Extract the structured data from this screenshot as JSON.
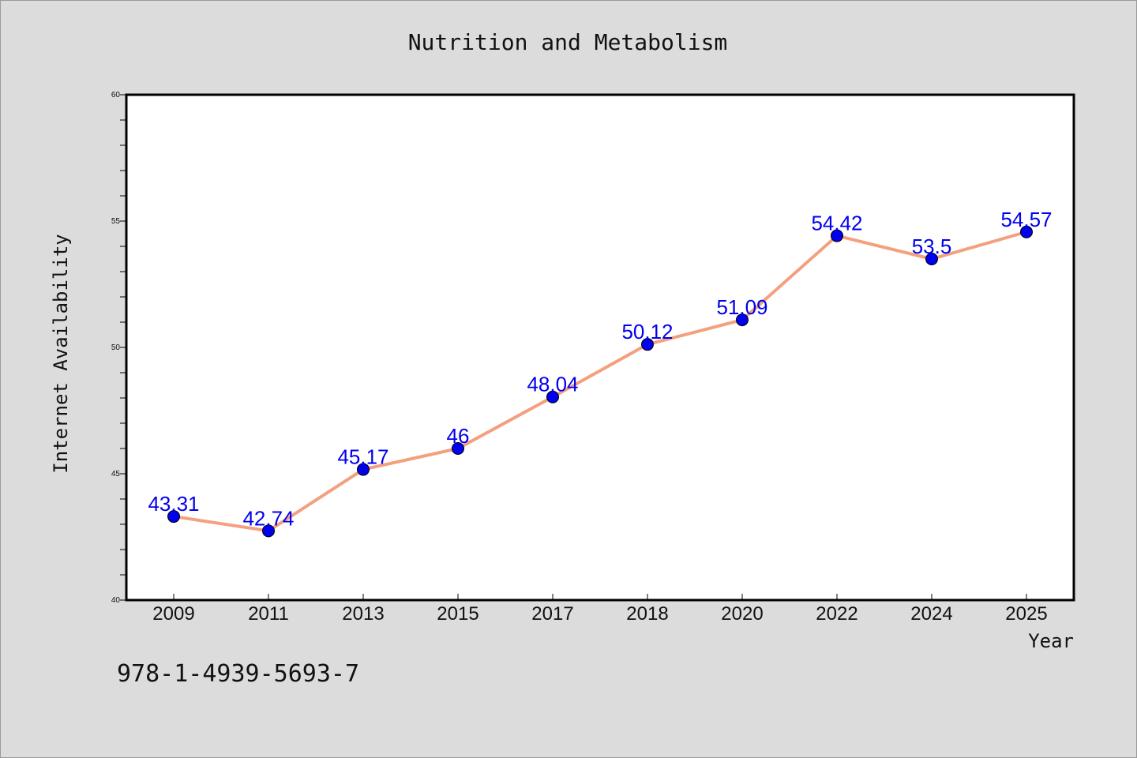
{
  "colors": {
    "background": "#dcdcdc",
    "plot_background": "#ffffff",
    "line": "#f4a07e",
    "marker": "#0000ee",
    "data_label": "#0000ee"
  },
  "footnote": "978-1-4939-5693-7",
  "chart_data": {
    "type": "line",
    "title": "Nutrition and Metabolism",
    "xlabel": "Year",
    "ylabel": "Internet Availability",
    "categories": [
      "2009",
      "2011",
      "2013",
      "2015",
      "2017",
      "2018",
      "2020",
      "2022",
      "2024",
      "2025"
    ],
    "series": [
      {
        "values": [
          43.31,
          42.74,
          45.17,
          46,
          48.04,
          50.12,
          51.09,
          54.42,
          53.5,
          54.57
        ],
        "labels": [
          "43.31",
          "42.74",
          "45.17",
          "46",
          "48.04",
          "50.12",
          "51.09",
          "54.42",
          "53.5",
          "54.57"
        ]
      }
    ],
    "ylim": [
      40,
      60
    ],
    "yticks": [
      "40",
      "45",
      "50",
      "55",
      "60"
    ],
    "grid": false,
    "legend": "none"
  }
}
